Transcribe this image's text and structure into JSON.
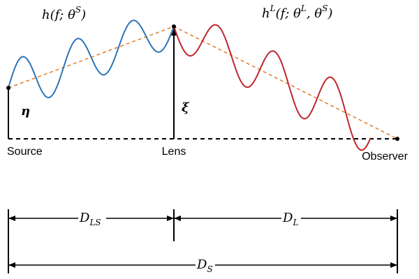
{
  "labels": {
    "source_wave": [
      "h(f; θ",
      "S",
      ")"
    ],
    "lensed_wave": [
      "h",
      "L",
      "(f; θ",
      "L",
      ", θ",
      "S",
      ")"
    ],
    "eta": "η",
    "xi": "ξ",
    "source": "Source",
    "lens": "Lens",
    "observer": "Observer",
    "d_ls": [
      "D",
      "LS"
    ],
    "d_l": [
      "D",
      "L"
    ],
    "d_s": [
      "D",
      "S"
    ]
  }
}
